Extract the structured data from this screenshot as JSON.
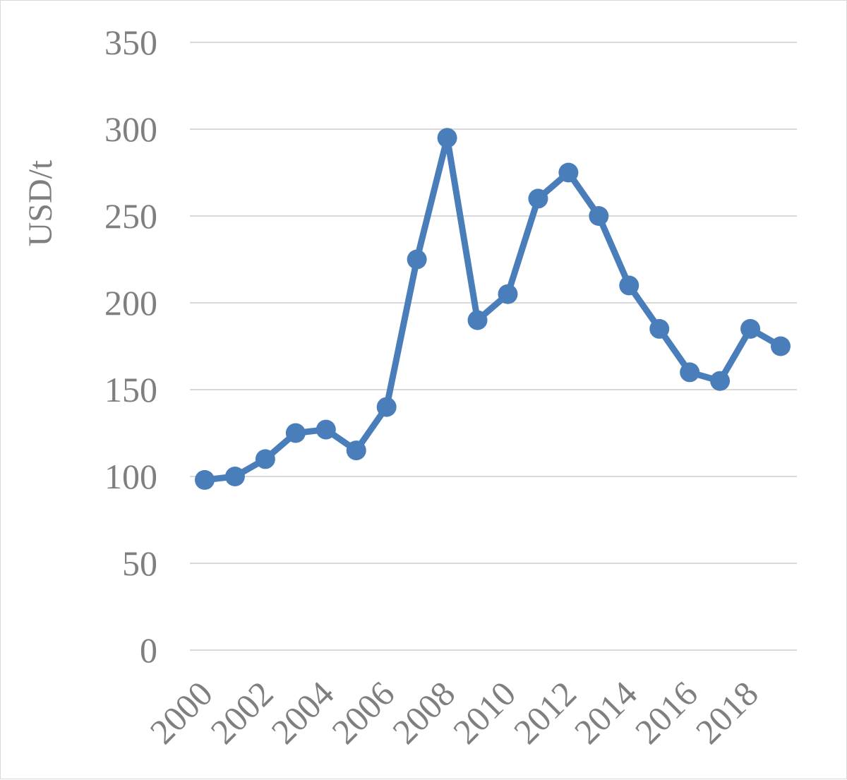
{
  "chart_data": {
    "type": "line",
    "title": "",
    "xlabel": "",
    "ylabel": "USD/t",
    "ylim": [
      0,
      350
    ],
    "yticks": [
      "0",
      "50",
      "100",
      "150",
      "200",
      "250",
      "300",
      "350"
    ],
    "xticks": [
      "2000",
      "2002",
      "2004",
      "2006",
      "2008",
      "2010",
      "2012",
      "2014",
      "2016",
      "2018"
    ],
    "grid": true,
    "legend": "none",
    "color": "#4a7ebb",
    "series": [
      {
        "x": [
          2000,
          2001,
          2002,
          2003,
          2004,
          2005,
          2006,
          2007,
          2008,
          2009,
          2010,
          2011,
          2012,
          2013,
          2014,
          2015,
          2016,
          2017,
          2018,
          2019
        ],
        "values": [
          98,
          100,
          110,
          125,
          127,
          115,
          140,
          225,
          295,
          190,
          205,
          260,
          275,
          250,
          210,
          185,
          160,
          155,
          185,
          175
        ]
      }
    ]
  }
}
